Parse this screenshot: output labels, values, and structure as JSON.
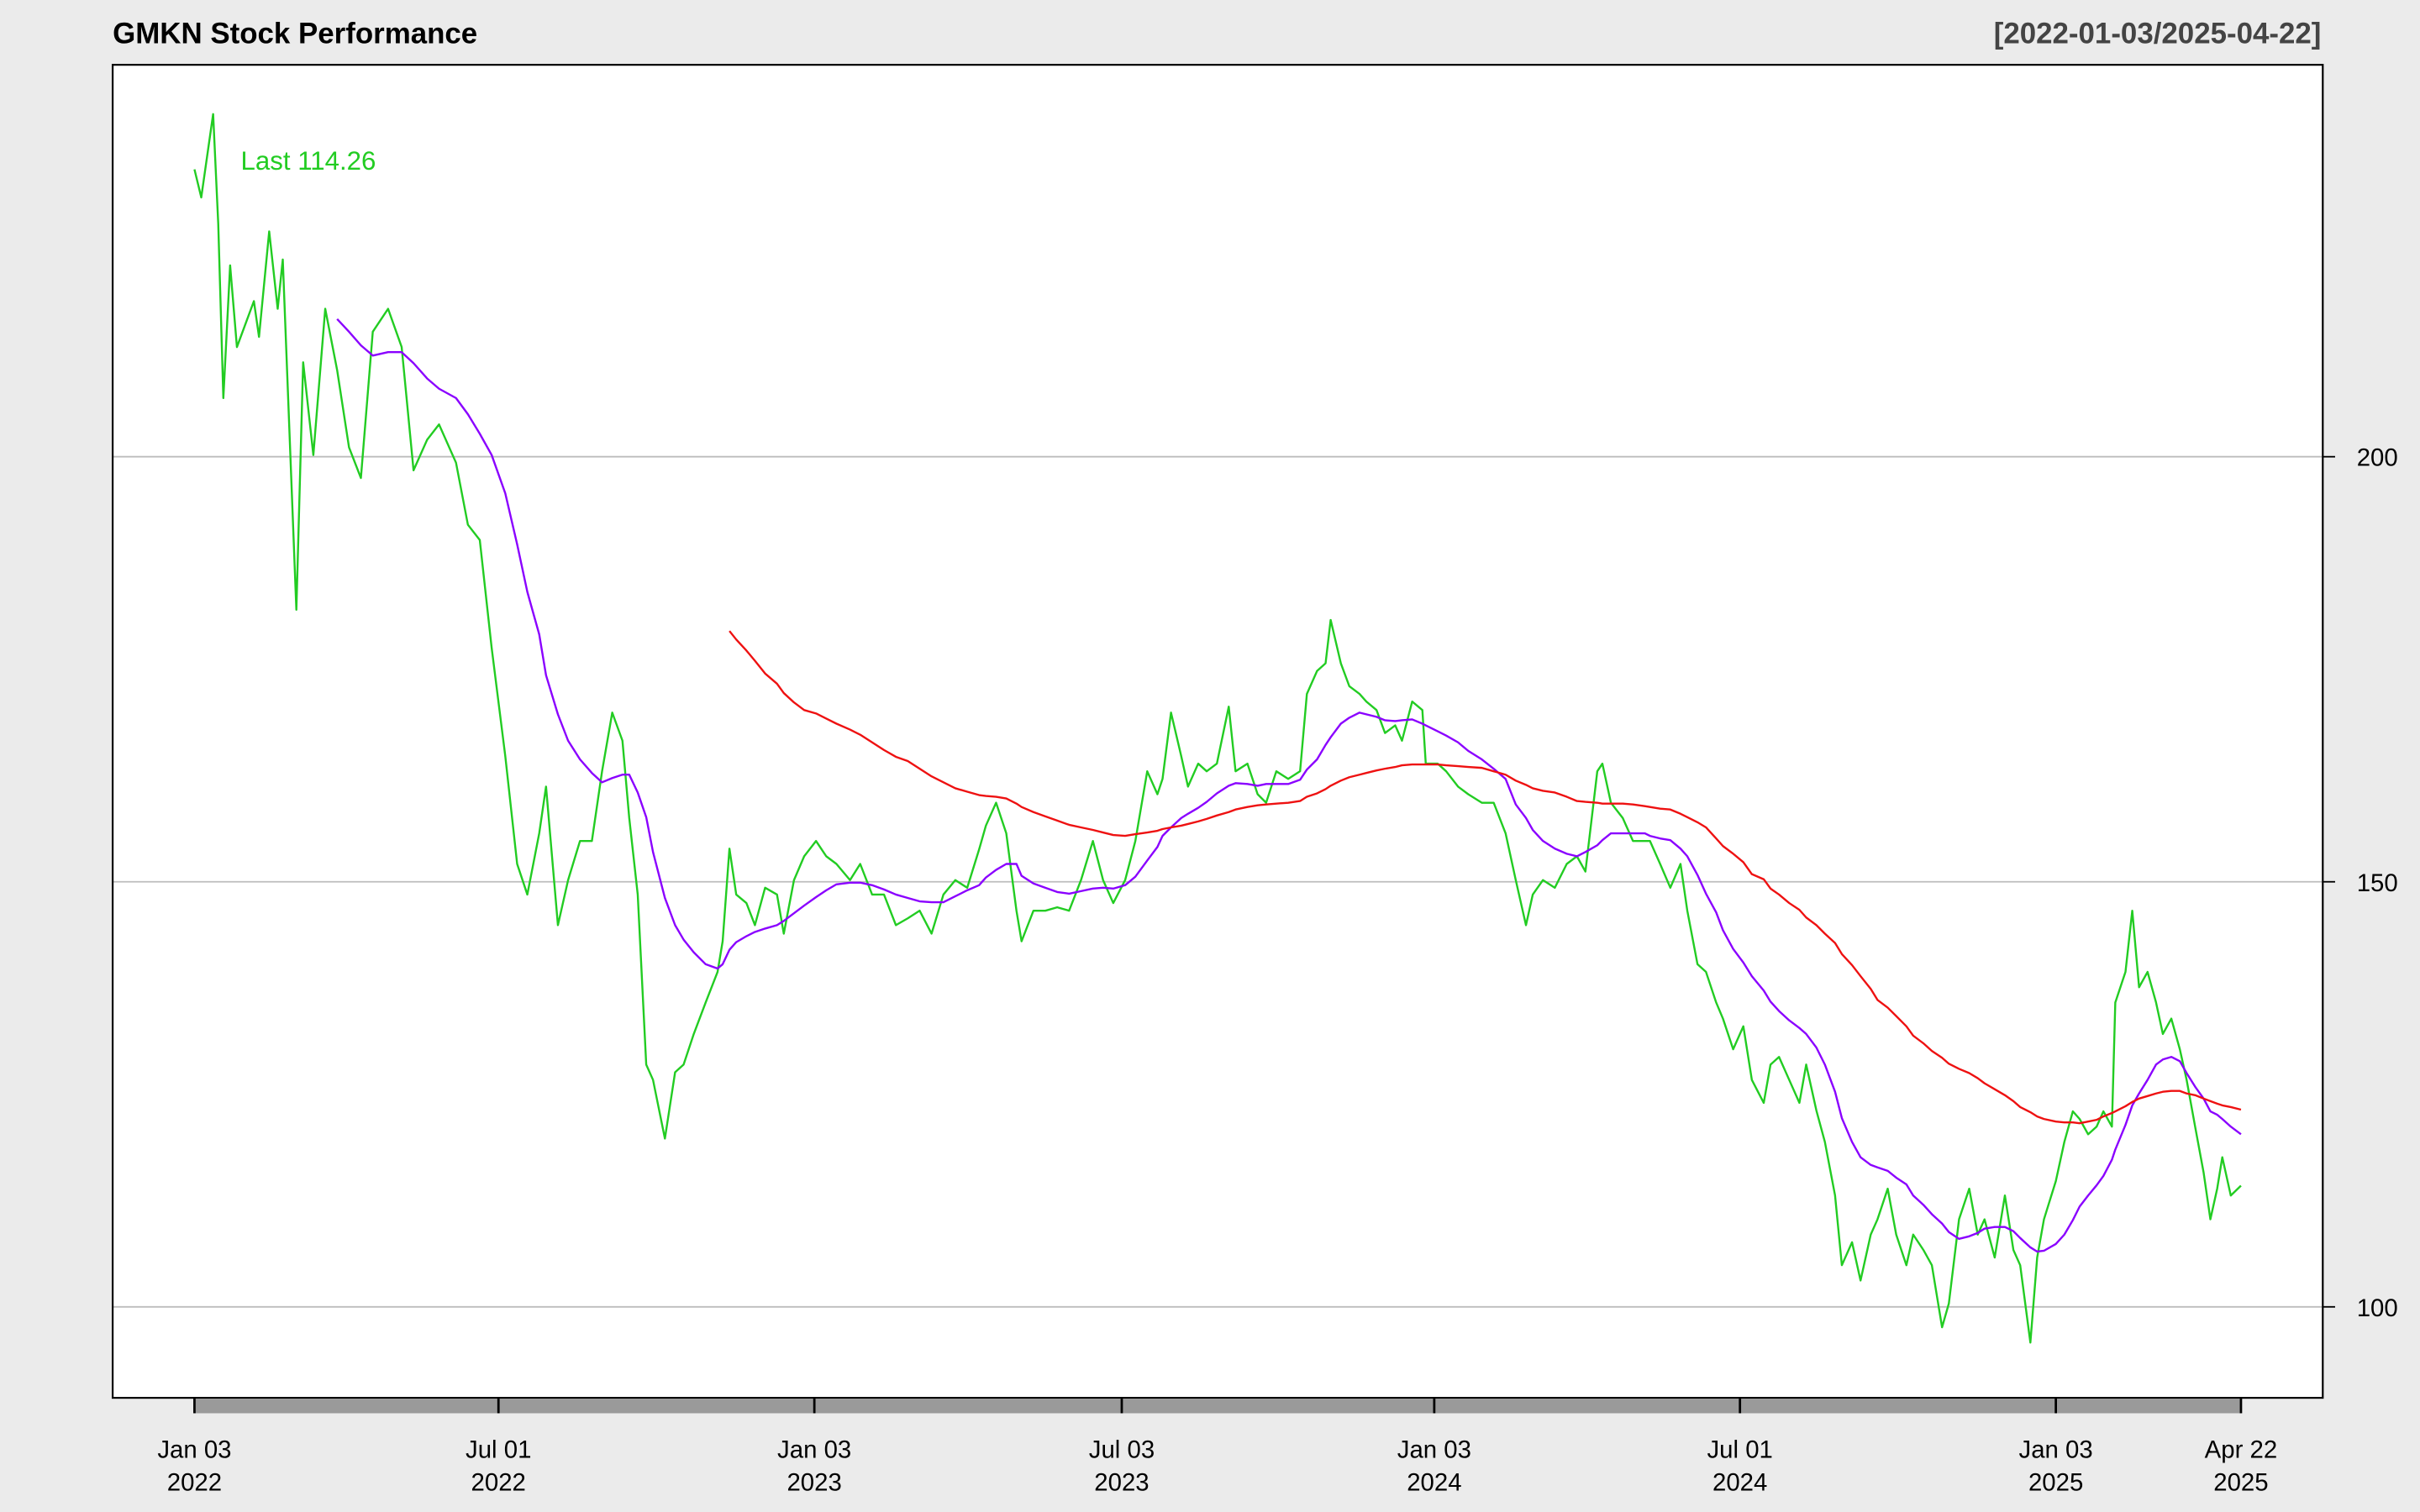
{
  "chart_data": {
    "type": "line",
    "title": "GMKN Stock Performance",
    "subtitle": "[2022-01-03/2025-04-22]",
    "annotation": "Last 114.26",
    "x": [
      "2022-01-03",
      "2022-01-07",
      "2022-01-14",
      "2022-01-17",
      "2022-01-20",
      "2022-01-24",
      "2022-01-28",
      "2022-02-07",
      "2022-02-10",
      "2022-02-16",
      "2022-02-21",
      "2022-02-24",
      "2022-03-04",
      "2022-03-08",
      "2022-03-14",
      "2022-03-21",
      "2022-03-28",
      "2022-04-04",
      "2022-04-11",
      "2022-04-18",
      "2022-04-27",
      "2022-05-05",
      "2022-05-12",
      "2022-05-20",
      "2022-05-27",
      "2022-06-06",
      "2022-06-13",
      "2022-06-20",
      "2022-06-27",
      "2022-07-05",
      "2022-07-12",
      "2022-07-18",
      "2022-07-25",
      "2022-07-29",
      "2022-08-05",
      "2022-08-11",
      "2022-08-18",
      "2022-08-25",
      "2022-08-31",
      "2022-09-06",
      "2022-09-12",
      "2022-09-16",
      "2022-09-21",
      "2022-09-26",
      "2022-09-30",
      "2022-10-07",
      "2022-10-13",
      "2022-10-18",
      "2022-10-24",
      "2022-10-31",
      "2022-11-07",
      "2022-11-10",
      "2022-11-14",
      "2022-11-18",
      "2022-11-24",
      "2022-11-29",
      "2022-12-05",
      "2022-12-12",
      "2022-12-16",
      "2022-12-22",
      "2022-12-28",
      "2023-01-04",
      "2023-01-10",
      "2023-01-16",
      "2023-01-24",
      "2023-01-30",
      "2023-02-06",
      "2023-02-13",
      "2023-02-20",
      "2023-02-27",
      "2023-03-06",
      "2023-03-13",
      "2023-03-20",
      "2023-03-27",
      "2023-04-03",
      "2023-04-10",
      "2023-04-14",
      "2023-04-20",
      "2023-04-26",
      "2023-05-02",
      "2023-05-05",
      "2023-05-12",
      "2023-05-19",
      "2023-05-26",
      "2023-06-02",
      "2023-06-09",
      "2023-06-16",
      "2023-06-22",
      "2023-06-28",
      "2023-07-05",
      "2023-07-11",
      "2023-07-18",
      "2023-07-24",
      "2023-07-27",
      "2023-08-01",
      "2023-08-07",
      "2023-08-11",
      "2023-08-17",
      "2023-08-22",
      "2023-08-28",
      "2023-09-04",
      "2023-09-08",
      "2023-09-15",
      "2023-09-21",
      "2023-09-26",
      "2023-10-02",
      "2023-10-09",
      "2023-10-16",
      "2023-10-20",
      "2023-10-26",
      "2023-10-31",
      "2023-11-03",
      "2023-11-09",
      "2023-11-14",
      "2023-11-20",
      "2023-11-24",
      "2023-11-30",
      "2023-12-05",
      "2023-12-11",
      "2023-12-15",
      "2023-12-21",
      "2023-12-27",
      "2023-12-29",
      "2024-01-05",
      "2024-01-10",
      "2024-01-17",
      "2024-01-23",
      "2024-01-31",
      "2024-02-07",
      "2024-02-14",
      "2024-02-20",
      "2024-02-26",
      "2024-03-01",
      "2024-03-07",
      "2024-03-14",
      "2024-03-21",
      "2024-03-27",
      "2024-04-01",
      "2024-04-08",
      "2024-04-11",
      "2024-04-16",
      "2024-04-23",
      "2024-04-29",
      "2024-05-06",
      "2024-05-09",
      "2024-05-15",
      "2024-05-21",
      "2024-05-27",
      "2024-05-31",
      "2024-06-06",
      "2024-06-11",
      "2024-06-17",
      "2024-06-21",
      "2024-06-27",
      "2024-07-03",
      "2024-07-08",
      "2024-07-15",
      "2024-07-19",
      "2024-07-24",
      "2024-07-30",
      "2024-08-05",
      "2024-08-09",
      "2024-08-15",
      "2024-08-20",
      "2024-08-26",
      "2024-08-30",
      "2024-09-05",
      "2024-09-10",
      "2024-09-16",
      "2024-09-20",
      "2024-09-26",
      "2024-10-01",
      "2024-10-07",
      "2024-10-11",
      "2024-10-17",
      "2024-10-22",
      "2024-10-28",
      "2024-11-01",
      "2024-11-07",
      "2024-11-13",
      "2024-11-18",
      "2024-11-22",
      "2024-11-28",
      "2024-12-04",
      "2024-12-09",
      "2024-12-13",
      "2024-12-19",
      "2024-12-23",
      "2024-12-27",
      "2025-01-03",
      "2025-01-08",
      "2025-01-13",
      "2025-01-17",
      "2025-01-22",
      "2025-01-27",
      "2025-01-31",
      "2025-02-05",
      "2025-02-07",
      "2025-02-13",
      "2025-02-17",
      "2025-02-21",
      "2025-02-26",
      "2025-03-03",
      "2025-03-07",
      "2025-03-12",
      "2025-03-17",
      "2025-03-21",
      "2025-03-26",
      "2025-03-31",
      "2025-04-04",
      "2025-04-08",
      "2025-04-11",
      "2025-04-16",
      "2025-04-22"
    ],
    "series": [
      {
        "color": "#22cc22",
        "values": [
          233.8,
          230.5,
          240.3,
          227.4,
          206.9,
          222.5,
          212.9,
          218.3,
          214.1,
          226.5,
          217.4,
          223.2,
          182.0,
          211.1,
          200.2,
          217.4,
          210.2,
          201.1,
          197.5,
          214.7,
          217.4,
          212.9,
          198.4,
          202.0,
          203.8,
          199.3,
          192.0,
          190.2,
          177.5,
          164.8,
          152.1,
          148.5,
          155.7,
          161.2,
          144.9,
          150.2,
          154.8,
          154.8,
          163.0,
          169.9,
          166.6,
          157.5,
          148.5,
          128.5,
          126.7,
          119.8,
          127.6,
          128.5,
          132.1,
          135.8,
          139.4,
          143.0,
          153.9,
          148.5,
          147.5,
          144.9,
          149.3,
          148.5,
          143.9,
          150.2,
          153.0,
          154.8,
          153.0,
          152.1,
          150.2,
          152.1,
          148.5,
          148.5,
          144.9,
          145.7,
          146.6,
          143.9,
          148.5,
          150.2,
          149.3,
          153.8,
          156.6,
          159.3,
          155.7,
          146.6,
          143.0,
          146.6,
          146.6,
          147.0,
          146.6,
          150.2,
          154.8,
          150.2,
          147.5,
          150.2,
          154.8,
          163.0,
          160.3,
          162.1,
          169.9,
          164.8,
          161.2,
          163.9,
          163.0,
          163.9,
          170.6,
          163.0,
          163.9,
          160.3,
          159.3,
          163.0,
          162.1,
          163.0,
          172.1,
          174.8,
          175.7,
          180.8,
          175.7,
          173.0,
          172.1,
          171.2,
          170.2,
          167.5,
          168.4,
          166.6,
          171.2,
          170.2,
          163.9,
          163.9,
          163.0,
          161.2,
          160.3,
          159.3,
          159.3,
          155.7,
          150.2,
          144.9,
          148.5,
          150.2,
          149.3,
          152.1,
          153.0,
          151.2,
          163.0,
          163.9,
          159.3,
          157.5,
          154.8,
          154.8,
          154.8,
          152.1,
          149.3,
          152.1,
          146.6,
          140.3,
          139.4,
          135.8,
          133.9,
          130.3,
          133.0,
          126.7,
          124.0,
          128.5,
          129.4,
          126.7,
          124.0,
          128.5,
          123.1,
          119.4,
          113.1,
          104.9,
          107.6,
          103.1,
          108.5,
          110.3,
          113.9,
          108.5,
          104.9,
          108.5,
          106.7,
          104.9,
          97.6,
          100.4,
          110.3,
          113.9,
          108.5,
          110.3,
          105.8,
          113.1,
          106.7,
          104.9,
          95.8,
          105.8,
          110.3,
          114.8,
          119.4,
          123.0,
          122.1,
          120.3,
          121.2,
          123.0,
          121.2,
          135.8,
          139.4,
          146.6,
          137.6,
          139.4,
          135.8,
          132.1,
          133.9,
          130.3,
          126.7,
          121.2,
          115.8,
          110.3,
          113.9,
          117.6,
          113.1,
          114.26
        ]
      },
      {
        "color": "#8a00ff",
        "values": [
          null,
          null,
          null,
          null,
          null,
          null,
          null,
          null,
          null,
          null,
          null,
          null,
          null,
          null,
          null,
          null,
          216.2,
          214.7,
          213.1,
          211.9,
          212.3,
          212.3,
          211.0,
          209.2,
          208.0,
          206.9,
          205.0,
          202.7,
          200.2,
          195.7,
          189.7,
          184.1,
          179.1,
          174.3,
          169.7,
          166.6,
          164.4,
          162.8,
          161.7,
          162.2,
          162.6,
          162.6,
          160.5,
          157.6,
          153.5,
          148.1,
          144.9,
          143.2,
          141.7,
          140.3,
          139.8,
          140.3,
          142.0,
          142.9,
          143.6,
          144.1,
          144.5,
          144.9,
          145.4,
          146.3,
          147.2,
          148.2,
          149.0,
          149.7,
          149.9,
          149.9,
          149.6,
          149.1,
          148.5,
          148.1,
          147.7,
          147.6,
          147.6,
          148.3,
          149.0,
          149.6,
          150.5,
          151.4,
          152.1,
          152.1,
          150.7,
          149.8,
          149.3,
          148.8,
          148.6,
          148.9,
          149.2,
          149.3,
          149.2,
          149.6,
          150.6,
          152.5,
          154.1,
          155.4,
          156.4,
          157.5,
          158.0,
          158.7,
          159.4,
          160.4,
          161.3,
          161.6,
          161.5,
          161.3,
          161.5,
          161.5,
          161.5,
          162.0,
          163.2,
          164.4,
          166.1,
          167.0,
          168.6,
          169.3,
          169.9,
          169.7,
          169.4,
          169.0,
          168.9,
          169.0,
          169.1,
          168.6,
          168.4,
          167.7,
          167.2,
          166.4,
          165.4,
          164.4,
          163.3,
          162.1,
          159.1,
          157.5,
          156.1,
          154.8,
          153.9,
          153.3,
          153.0,
          153.5,
          154.3,
          154.9,
          155.7,
          155.7,
          155.7,
          155.7,
          155.4,
          155.1,
          154.9,
          153.9,
          153.0,
          150.8,
          148.6,
          146.4,
          144.3,
          142.1,
          140.5,
          138.9,
          137.2,
          135.9,
          134.8,
          133.7,
          132.8,
          132.1,
          130.5,
          128.5,
          125.3,
          122.2,
          119.4,
          117.6,
          116.7,
          116.4,
          116.0,
          115.2,
          114.4,
          113.1,
          112.0,
          110.9,
          109.8,
          108.8,
          108.0,
          108.3,
          108.7,
          109.2,
          109.4,
          109.4,
          108.9,
          108.1,
          107.0,
          106.5,
          106.6,
          107.4,
          108.5,
          110.2,
          111.8,
          113.1,
          114.3,
          115.4,
          117.3,
          118.5,
          121.4,
          123.7,
          125.1,
          126.7,
          128.5,
          129.1,
          129.4,
          128.9,
          127.5,
          125.9,
          124.5,
          123.0,
          122.6,
          122.1,
          121.2,
          120.3
        ]
      },
      {
        "color": "#ee1111",
        "values": [
          null,
          null,
          null,
          null,
          null,
          null,
          null,
          null,
          null,
          null,
          null,
          null,
          null,
          null,
          null,
          null,
          null,
          null,
          null,
          null,
          null,
          null,
          null,
          null,
          null,
          null,
          null,
          null,
          null,
          null,
          null,
          null,
          null,
          null,
          null,
          null,
          null,
          null,
          null,
          null,
          null,
          null,
          null,
          null,
          null,
          null,
          null,
          null,
          null,
          null,
          null,
          null,
          179.5,
          178.5,
          177.2,
          176.0,
          174.5,
          173.3,
          172.2,
          171.1,
          170.2,
          169.8,
          169.2,
          168.6,
          167.9,
          167.3,
          166.4,
          165.5,
          164.7,
          164.2,
          163.3,
          162.4,
          161.7,
          161.0,
          160.6,
          160.2,
          160.1,
          160.0,
          159.8,
          159.2,
          158.8,
          158.2,
          157.7,
          157.2,
          156.7,
          156.4,
          156.1,
          155.8,
          155.5,
          155.4,
          155.6,
          155.8,
          156.0,
          156.2,
          156.4,
          156.6,
          156.8,
          157.1,
          157.4,
          157.8,
          158.2,
          158.5,
          158.8,
          159.0,
          159.1,
          159.2,
          159.3,
          159.5,
          160.0,
          160.4,
          160.9,
          161.3,
          161.9,
          162.3,
          162.6,
          162.8,
          163.1,
          163.3,
          163.5,
          163.7,
          163.8,
          163.8,
          163.8,
          163.8,
          163.7,
          163.6,
          163.5,
          163.4,
          163.0,
          162.6,
          161.9,
          161.4,
          161.0,
          160.7,
          160.5,
          160.0,
          159.5,
          159.4,
          159.3,
          159.2,
          159.2,
          159.2,
          159.1,
          158.9,
          158.8,
          158.6,
          158.5,
          158.0,
          157.6,
          157.0,
          156.4,
          155.1,
          154.2,
          153.3,
          152.3,
          150.9,
          150.3,
          149.2,
          148.5,
          147.5,
          146.7,
          145.8,
          144.9,
          143.9,
          142.8,
          141.5,
          140.2,
          138.9,
          137.4,
          136.1,
          135.2,
          134.2,
          133.0,
          131.9,
          131.0,
          130.1,
          129.3,
          128.6,
          128.0,
          127.5,
          126.9,
          126.3,
          125.6,
          124.9,
          124.2,
          123.5,
          122.9,
          122.4,
          122.1,
          121.8,
          121.7,
          121.7,
          121.6,
          121.8,
          122.0,
          122.4,
          122.8,
          123.0,
          123.6,
          124.1,
          124.5,
          124.8,
          125.1,
          125.3,
          125.4,
          125.4,
          125.1,
          124.9,
          124.5,
          124.2,
          123.9,
          123.7,
          123.5,
          123.2
        ]
      }
    ],
    "xlim": [
      "2022-01-03",
      "2025-04-22"
    ],
    "xticks": [
      {
        "value": "2022-01-03",
        "label": [
          "Jan 03",
          "2022"
        ]
      },
      {
        "value": "2022-07-01",
        "label": [
          "Jul 01",
          "2022"
        ]
      },
      {
        "value": "2023-01-03",
        "label": [
          "Jan 03",
          "2023"
        ]
      },
      {
        "value": "2023-07-03",
        "label": [
          "Jul 03",
          "2023"
        ]
      },
      {
        "value": "2024-01-03",
        "label": [
          "Jan 03",
          "2024"
        ]
      },
      {
        "value": "2024-07-01",
        "label": [
          "Jul 01",
          "2024"
        ]
      },
      {
        "value": "2025-01-03",
        "label": [
          "Jan 03",
          "2025"
        ]
      },
      {
        "value": "2025-04-22",
        "label": [
          "Apr 22",
          "2025"
        ]
      }
    ],
    "ylim": [
      89.3,
      246.1
    ],
    "yticks": [
      100,
      150,
      200
    ],
    "grid": true
  }
}
